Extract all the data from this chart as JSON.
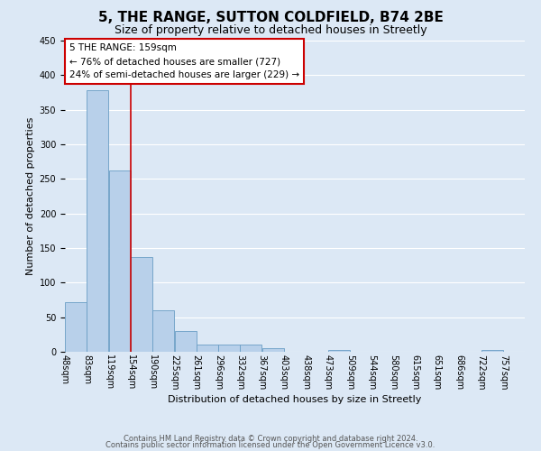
{
  "title": "5, THE RANGE, SUTTON COLDFIELD, B74 2BE",
  "subtitle": "Size of property relative to detached houses in Streetly",
  "xlabel": "Distribution of detached houses by size in Streetly",
  "ylabel": "Number of detached properties",
  "bin_labels": [
    "48sqm",
    "83sqm",
    "119sqm",
    "154sqm",
    "190sqm",
    "225sqm",
    "261sqm",
    "296sqm",
    "332sqm",
    "367sqm",
    "403sqm",
    "438sqm",
    "473sqm",
    "509sqm",
    "544sqm",
    "580sqm",
    "615sqm",
    "651sqm",
    "686sqm",
    "722sqm",
    "757sqm"
  ],
  "bar_heights": [
    72,
    378,
    262,
    137,
    60,
    30,
    10,
    10,
    10,
    5,
    0,
    0,
    3,
    0,
    0,
    0,
    0,
    0,
    0,
    3,
    0
  ],
  "bar_color": "#b8d0ea",
  "bar_edge_color": "#6a9ec5",
  "ylim": [
    0,
    450
  ],
  "yticks": [
    0,
    50,
    100,
    150,
    200,
    250,
    300,
    350,
    400,
    450
  ],
  "annotation_title": "5 THE RANGE: 159sqm",
  "annotation_line1": "← 76% of detached houses are smaller (727)",
  "annotation_line2": "24% of semi-detached houses are larger (229) →",
  "footer_line1": "Contains HM Land Registry data © Crown copyright and database right 2024.",
  "footer_line2": "Contains public sector information licensed under the Open Government Licence v3.0.",
  "background_color": "#dce8f5",
  "plot_bg_color": "#dce8f5",
  "annotation_box_color": "#ffffff",
  "annotation_box_edge": "#cc0000",
  "vline_color": "#cc0000",
  "grid_color": "#ffffff",
  "title_fontsize": 11,
  "subtitle_fontsize": 9,
  "axis_label_fontsize": 8,
  "tick_fontsize": 7,
  "annotation_fontsize": 7.5,
  "footer_fontsize": 6
}
